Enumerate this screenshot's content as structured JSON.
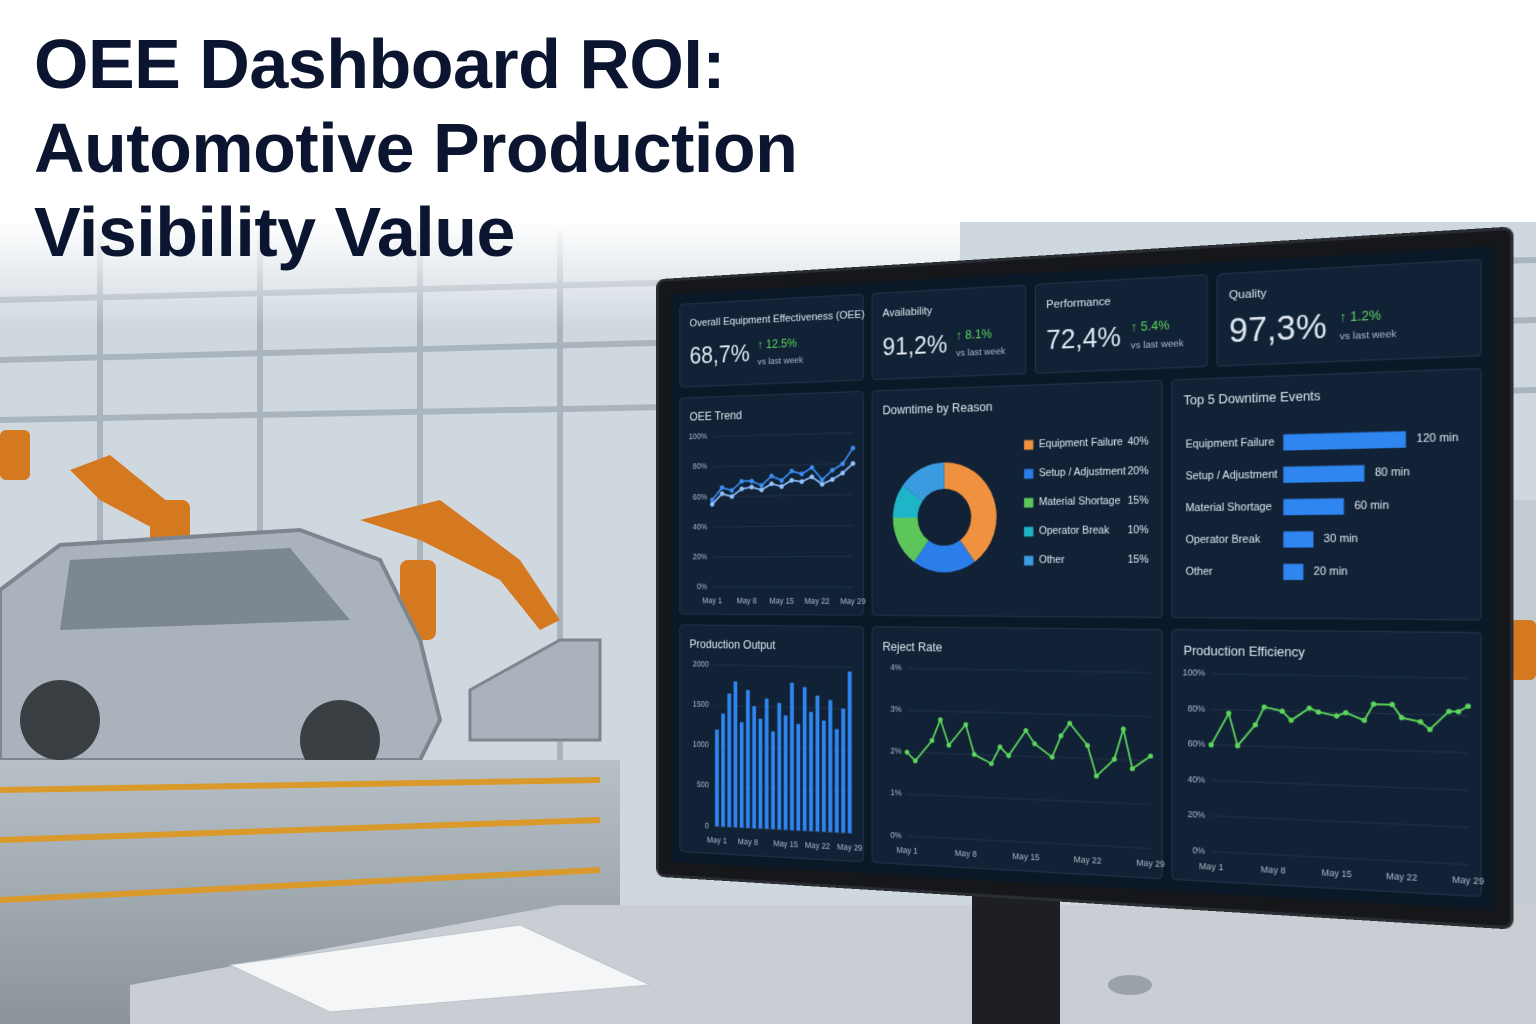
{
  "title": [
    "OEE Dashboard ROI:",
    "Automotive Production",
    "Visibility Value"
  ],
  "kpis": [
    {
      "label": "Overall Equipment Effectiveness (OEE)",
      "value": "68,7%",
      "change": "↑ 12.5%",
      "note": "vs last week"
    },
    {
      "label": "Availability",
      "value": "91,2%",
      "change": "↑ 8.1%",
      "note": "vs last week"
    },
    {
      "label": "Performance",
      "value": "72,4%",
      "change": "↑ 5.4%",
      "note": "vs last week"
    },
    {
      "label": "Quality",
      "value": "97,3%",
      "change": "↑ 1.2%",
      "note": "vs last week"
    }
  ],
  "chart_data": [
    {
      "type": "line",
      "title": "OEE Trend",
      "x": [
        1,
        3,
        5,
        7,
        9,
        11,
        13,
        15,
        17,
        19,
        21,
        23,
        25,
        27,
        29
      ],
      "xlim": [
        1,
        29
      ],
      "xticks": [
        {
          "value": 1,
          "label": "May 1"
        },
        {
          "value": 8,
          "label": "May 8"
        },
        {
          "value": 15,
          "label": "May 15"
        },
        {
          "value": 22,
          "label": "May 22"
        },
        {
          "value": 29,
          "label": "May 29"
        }
      ],
      "ylim": [
        0,
        100
      ],
      "yticks": [
        {
          "value": 0,
          "label": "0%"
        },
        {
          "value": 20,
          "label": "20%"
        },
        {
          "value": 40,
          "label": "40%"
        },
        {
          "value": 60,
          "label": "60%"
        },
        {
          "value": 80,
          "label": "80%"
        },
        {
          "value": 100,
          "label": "100%"
        }
      ],
      "grid": true,
      "series": [
        {
          "color": "#3b8cf0",
          "values": [
            58,
            66,
            64,
            70,
            70,
            67,
            73,
            70,
            76,
            74,
            78,
            70,
            76,
            80,
            90
          ]
        },
        {
          "color": "#8fc2ff",
          "values": [
            55,
            62,
            60,
            65,
            66,
            64,
            68,
            66,
            70,
            69,
            72,
            67,
            70,
            74,
            80
          ]
        }
      ]
    },
    {
      "type": "pie",
      "title": "Downtime by Reason",
      "donut": true,
      "categories": [
        "Equipment Failure",
        "Setup / Adjustment",
        "Material Shortage",
        "Operator Break",
        "Other"
      ],
      "values": [
        40,
        20,
        15,
        10,
        15
      ],
      "value_labels": [
        "40%",
        "20%",
        "15%",
        "10%",
        "15%"
      ],
      "colors": [
        "#f0913f",
        "#2b7de9",
        "#5cc65a",
        "#1fb5c9",
        "#3a9be0"
      ]
    },
    {
      "type": "hbar",
      "title": "Top 5 Downtime Events",
      "categories": [
        "Equipment Failure",
        "Setup / Adjustment",
        "Material Shortage",
        "Operator Break",
        "Other"
      ],
      "values": [
        120,
        80,
        60,
        30,
        20
      ],
      "value_labels": [
        "120 min",
        "80 min",
        "60 min",
        "30 min",
        "20 min"
      ],
      "color": "#2f86f0"
    },
    {
      "type": "bar",
      "title": "Production Output",
      "categories": [
        "May 1",
        null,
        null,
        null,
        null,
        "May 8",
        null,
        null,
        null,
        null,
        null,
        "May 15",
        null,
        null,
        null,
        null,
        "May 22",
        null,
        null,
        null,
        null,
        "May 29"
      ],
      "values": [
        1200,
        1400,
        1650,
        1800,
        1300,
        1700,
        1500,
        1350,
        1600,
        1200,
        1550,
        1400,
        1800,
        1300,
        1750,
        1450,
        1650,
        1350,
        1600,
        1250,
        1500,
        1950
      ],
      "ylim": [
        0,
        2000
      ],
      "yticks": [
        0,
        500,
        1000,
        1500,
        2000
      ],
      "grid": true,
      "color": "#2f86f0"
    },
    {
      "type": "line",
      "title": "Reject Rate",
      "x": [
        1,
        2,
        4,
        5,
        6,
        8,
        9,
        11,
        12,
        13,
        15,
        16,
        18,
        19,
        20,
        22,
        23,
        25,
        26,
        27,
        29
      ],
      "xlim": [
        1,
        29
      ],
      "xticks": [
        {
          "value": 1,
          "label": "May 1"
        },
        {
          "value": 8,
          "label": "May 8"
        },
        {
          "value": 15,
          "label": "May 15"
        },
        {
          "value": 22,
          "label": "May 22"
        },
        {
          "value": 29,
          "label": "May 29"
        }
      ],
      "ylim": [
        0,
        4
      ],
      "yticks": [
        {
          "value": 0,
          "label": "0%"
        },
        {
          "value": 1,
          "label": "1%"
        },
        {
          "value": 2,
          "label": "2%"
        },
        {
          "value": 3,
          "label": "3%"
        },
        {
          "value": 4,
          "label": "4%"
        }
      ],
      "grid": true,
      "series": [
        {
          "color": "#5cd65c",
          "values": [
            2.0,
            1.8,
            2.3,
            2.8,
            2.2,
            2.7,
            2.0,
            1.8,
            2.2,
            2.0,
            2.6,
            2.3,
            2.0,
            2.5,
            2.8,
            2.3,
            1.6,
            2.0,
            2.7,
            1.8,
            2.1
          ]
        }
      ]
    },
    {
      "type": "line",
      "title": "Production Efficiency",
      "x": [
        1,
        3,
        4,
        6,
        7,
        9,
        10,
        12,
        13,
        15,
        16,
        18,
        19,
        21,
        22,
        24,
        25,
        27,
        28,
        29
      ],
      "xlim": [
        1,
        29
      ],
      "xticks": [
        {
          "value": 1,
          "label": "May 1"
        },
        {
          "value": 8,
          "label": "May 8"
        },
        {
          "value": 15,
          "label": "May 15"
        },
        {
          "value": 22,
          "label": "May 22"
        },
        {
          "value": 29,
          "label": "May 29"
        }
      ],
      "ylim": [
        0,
        100
      ],
      "yticks": [
        {
          "value": 0,
          "label": "0%"
        },
        {
          "value": 20,
          "label": "20%"
        },
        {
          "value": 40,
          "label": "40%"
        },
        {
          "value": 60,
          "label": "60%"
        },
        {
          "value": 80,
          "label": "80%"
        },
        {
          "value": 100,
          "label": "100%"
        }
      ],
      "grid": true,
      "series": [
        {
          "color": "#5cd65c",
          "values": [
            60,
            78,
            60,
            72,
            82,
            80,
            75,
            82,
            80,
            78,
            80,
            76,
            85,
            85,
            78,
            76,
            72,
            82,
            82,
            85
          ]
        }
      ]
    }
  ]
}
